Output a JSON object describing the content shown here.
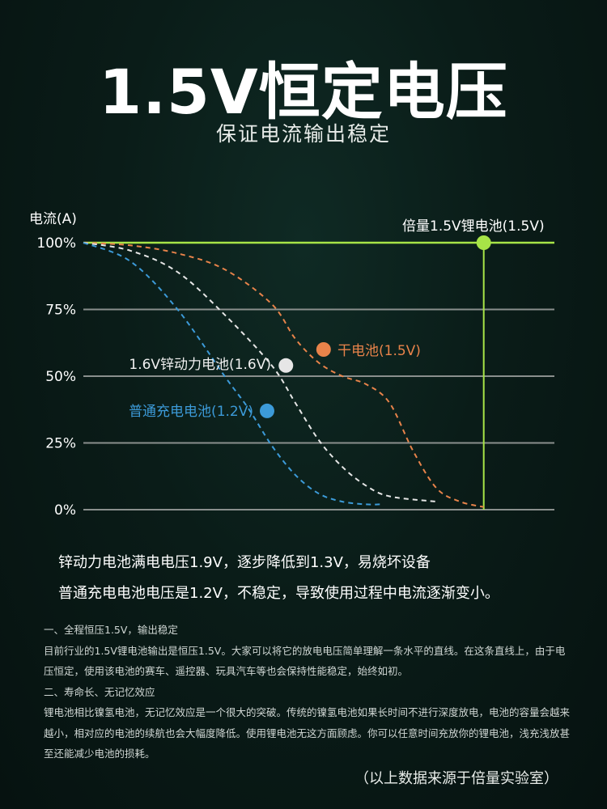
{
  "header": {
    "title": "1.5V恒定电压",
    "subtitle": "保证电流输出稳定"
  },
  "chart_data": {
    "type": "line",
    "ylabel": "电流(A)",
    "ylim": [
      0,
      100
    ],
    "yticks": [
      "100%",
      "75%",
      "50%",
      "25%",
      "0%"
    ],
    "ytick_values": [
      100,
      75,
      50,
      25,
      0
    ],
    "x": [
      0,
      5,
      10,
      15,
      20,
      25,
      30,
      35,
      40,
      45,
      50,
      55,
      60,
      65,
      70,
      75,
      80,
      85,
      90,
      95,
      100
    ],
    "grid": true,
    "series": [
      {
        "name": "倍量1.5V锂电池(1.5V)",
        "color": "#a7e447",
        "style": "solid",
        "x": [
          0,
          100
        ],
        "values": [
          100,
          100
        ],
        "drop_x": 85,
        "marker_x": 85,
        "marker_y": 100
      },
      {
        "name": "干电池(1.5V)",
        "color": "#e8834a",
        "style": "dashed",
        "x": [
          0,
          10,
          20,
          30,
          40,
          45,
          50,
          55,
          60,
          65,
          70,
          75,
          80,
          85
        ],
        "values": [
          100,
          99,
          96,
          90,
          77,
          64,
          55,
          50,
          47,
          40,
          22,
          8,
          3,
          1
        ],
        "marker_x": 51,
        "marker_y": 60
      },
      {
        "name": "1.6V锌动力电池(1.6V)",
        "color": "#e6e6e6",
        "style": "dashed",
        "x": [
          0,
          10,
          20,
          30,
          40,
          45,
          50,
          55,
          60,
          65,
          75
        ],
        "values": [
          100,
          97,
          89,
          73,
          54,
          40,
          26,
          16,
          9,
          5,
          3
        ],
        "marker_x": 43,
        "marker_y": 54
      },
      {
        "name": "普通充电电池(1.2V)",
        "color": "#3c9ad8",
        "style": "dashed",
        "x": [
          0,
          10,
          20,
          30,
          35,
          40,
          45,
          50,
          55,
          60,
          63
        ],
        "values": [
          100,
          93,
          75,
          50,
          38,
          24,
          13,
          6,
          3,
          2,
          2
        ],
        "marker_x": 39,
        "marker_y": 37
      }
    ]
  },
  "notes": [
    "锌动力电池满电电压1.9V，逐步降低到1.3V，易烧坏设备",
    "普通充电电池电压是1.2V，不稳定，导致使用过程中电流逐渐变小。"
  ],
  "body": [
    "一、全程恒压1.5V，输出稳定",
    "目前行业的1.5V锂电池输出是恒压1.5V。大家可以将它的放电电压简单理解一条水平的直线。在这条直线上，由于电压恒定，使用该电池的赛车、遥控器、玩具汽车等也会保持性能稳定，始终如初。",
    "二、寿命长、无记忆效应",
    "锂电池相比镍氢电池，无记忆效应是一个很大的突破。传统的镍氢电池如果长时间不进行深度放电，电池的容量会越来越小，相对应的电池的续航也会大幅度降低。使用锂电池无这方面顾虑。你可以任意时间充放你的锂电池，浅充浅放甚至还能减少电池的损耗。"
  ],
  "source": "（以上数据来源于倍量实验室）"
}
